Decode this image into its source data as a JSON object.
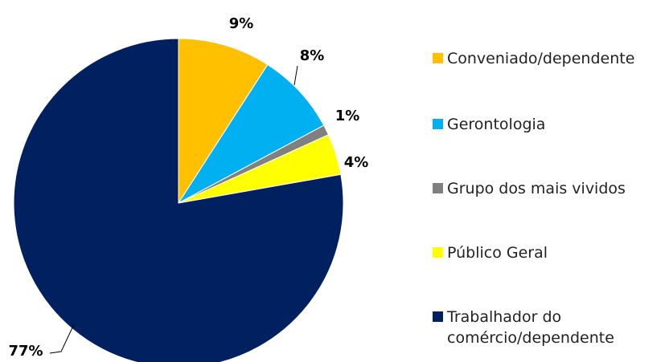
{
  "chart_data": {
    "type": "pie",
    "categories": [
      "Conveniado/dependente",
      "Gerontologia",
      "Grupo dos mais vividos",
      "Público Geral",
      "Trabalhador do comércio/dependente"
    ],
    "values": [
      9,
      8,
      1,
      4,
      77
    ],
    "value_labels": [
      "9%",
      "8%",
      "1%",
      "4%",
      "77%"
    ],
    "colors": [
      "#FFC000",
      "#00B0F0",
      "#808080",
      "#FFFF00",
      "#002060"
    ],
    "legend": "right"
  }
}
